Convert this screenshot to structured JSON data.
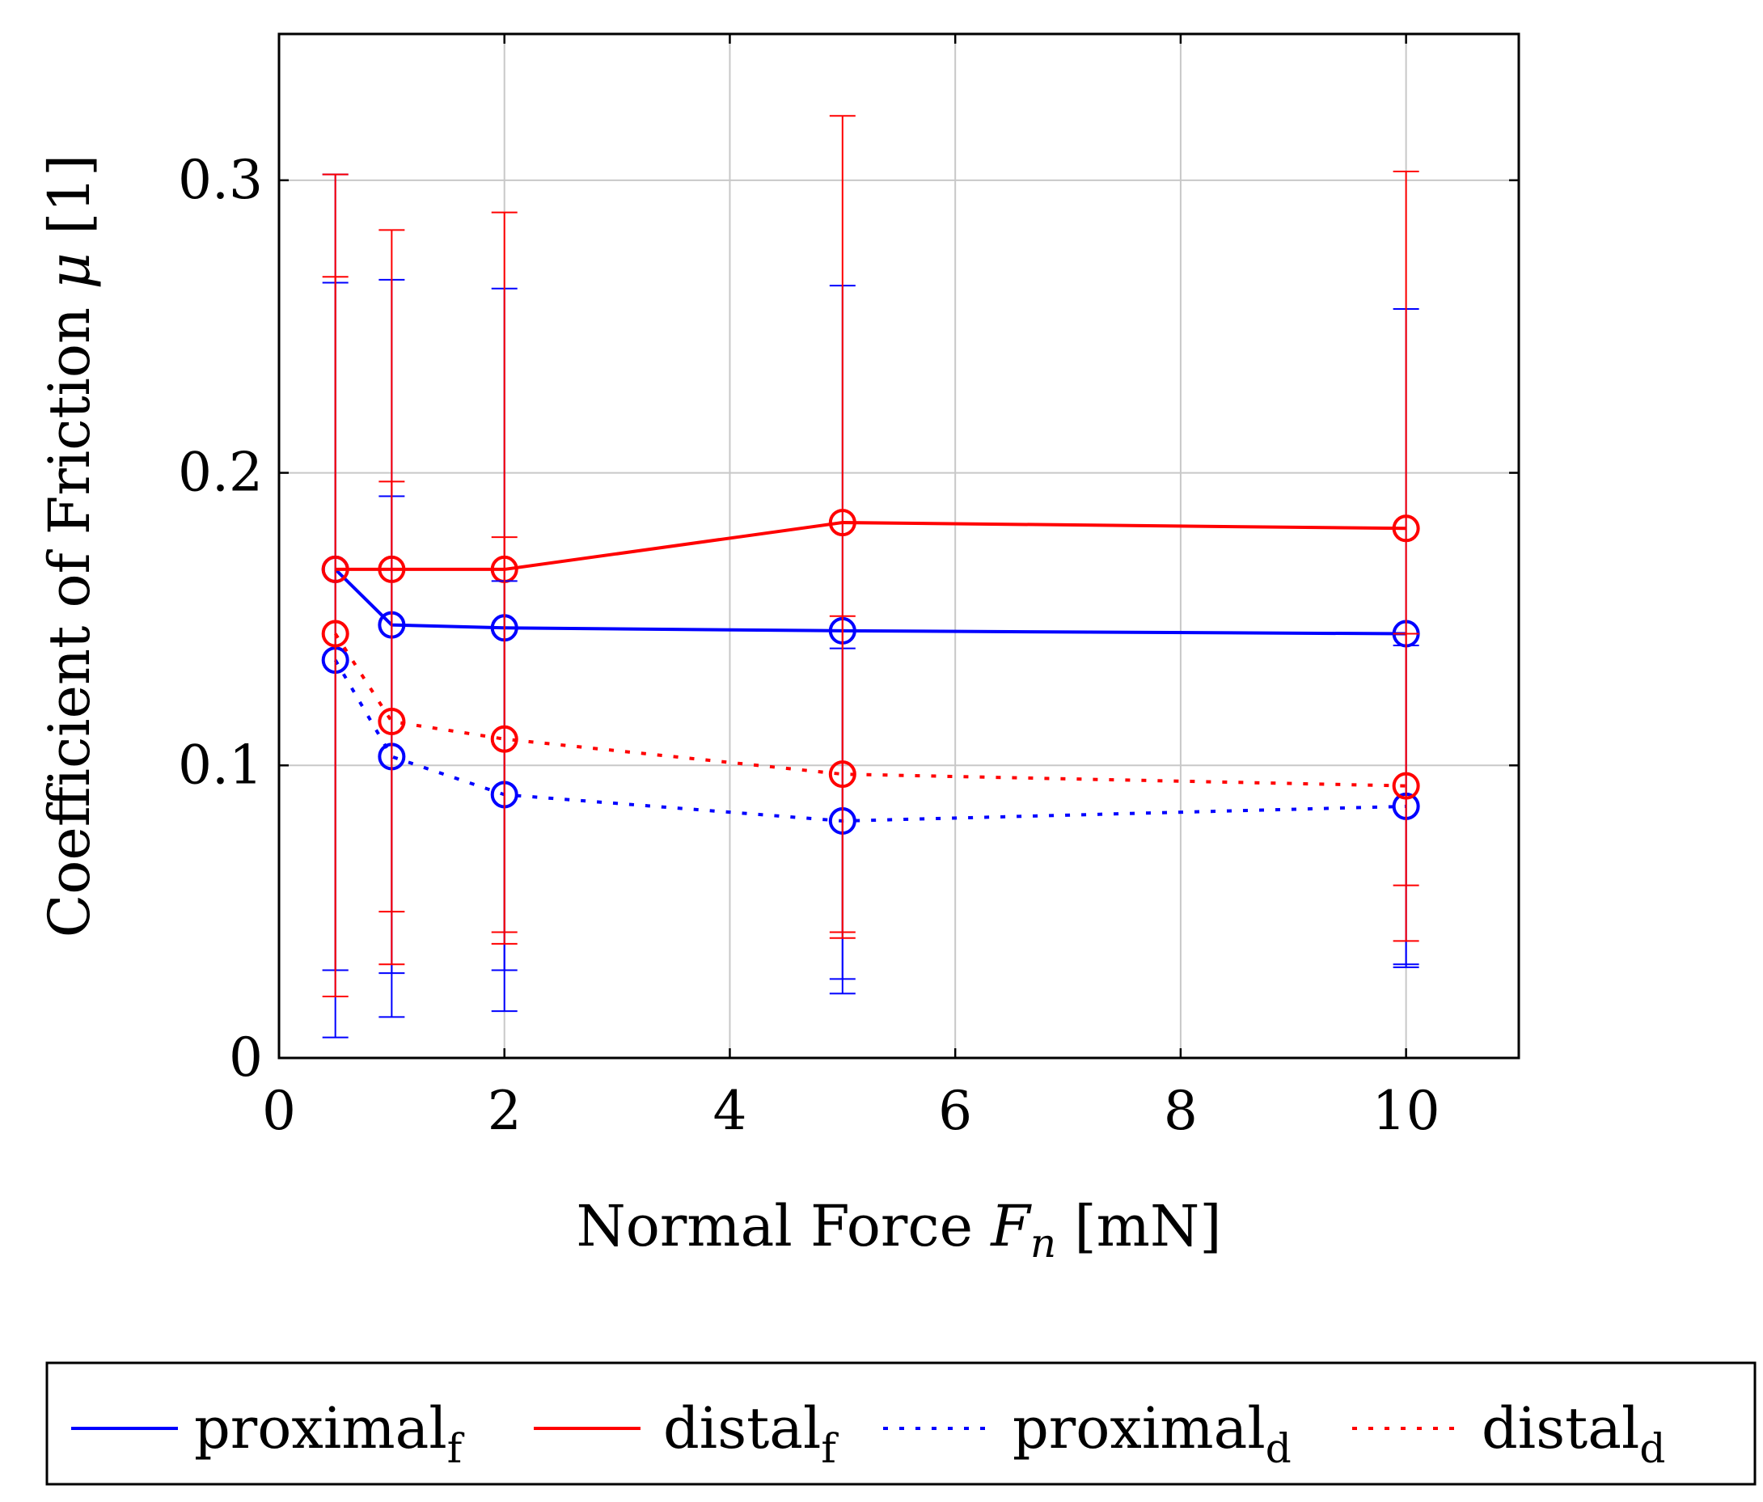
{
  "chart_data": {
    "type": "line",
    "title": "",
    "xlabel": "Normal Force F_n [mN]",
    "ylabel": "Coefficient of Friction μ [1]",
    "xlabel_parts": {
      "pre": "Normal Force ",
      "var": "F",
      "sub": "n",
      "post": " [mN]"
    },
    "ylabel_parts": {
      "pre": "Coefficient of Friction ",
      "var": "μ",
      "post": " [1]"
    },
    "xlim": [
      0,
      11
    ],
    "ylim": [
      0,
      0.35
    ],
    "xticks": [
      0,
      2,
      4,
      6,
      8,
      10
    ],
    "yticks": [
      0,
      0.1,
      0.2,
      0.3
    ],
    "xtick_labels": [
      "0",
      "2",
      "4",
      "6",
      "8",
      "10"
    ],
    "ytick_labels": [
      "0",
      "0.1",
      "0.2",
      "0.3"
    ],
    "grid": true,
    "legend_position": "bottom",
    "series": [
      {
        "name": "proximal_f",
        "label_base": "proximal",
        "label_sub": "f",
        "color": "#0000ff",
        "style": "solid",
        "x": [
          0.5,
          1,
          2,
          5,
          10
        ],
        "y": [
          0.167,
          0.148,
          0.147,
          0.146,
          0.145
        ],
        "err_low": [
          0.007,
          0.029,
          0.03,
          0.022,
          0.032
        ],
        "err_high": [
          0.302,
          0.266,
          0.263,
          0.264,
          0.256
        ]
      },
      {
        "name": "distal_f",
        "label_base": "distal",
        "label_sub": "f",
        "color": "#ff0000",
        "style": "solid",
        "x": [
          0.5,
          1,
          2,
          5,
          10
        ],
        "y": [
          0.167,
          0.167,
          0.167,
          0.183,
          0.181
        ],
        "err_low": [
          0.03,
          0.05,
          0.043,
          0.043,
          0.059
        ],
        "err_high": [
          0.302,
          0.283,
          0.289,
          0.322,
          0.303
        ]
      },
      {
        "name": "proximal_d",
        "label_base": "proximal",
        "label_sub": "d",
        "color": "#0000ff",
        "style": "dotted",
        "x": [
          0.5,
          1,
          2,
          5,
          10
        ],
        "y": [
          0.136,
          0.103,
          0.09,
          0.081,
          0.086
        ],
        "err_low": [
          0.03,
          0.014,
          0.016,
          0.027,
          0.031
        ],
        "err_high": [
          0.265,
          0.192,
          0.163,
          0.14,
          0.141
        ]
      },
      {
        "name": "distal_d",
        "label_base": "distal",
        "label_sub": "d",
        "color": "#ff0000",
        "style": "dotted",
        "x": [
          0.5,
          1,
          2,
          5,
          10
        ],
        "y": [
          0.145,
          0.115,
          0.109,
          0.097,
          0.093
        ],
        "err_low": [
          0.021,
          0.032,
          0.039,
          0.041,
          0.04
        ],
        "err_high": [
          0.267,
          0.197,
          0.178,
          0.151,
          0.145
        ]
      }
    ]
  }
}
